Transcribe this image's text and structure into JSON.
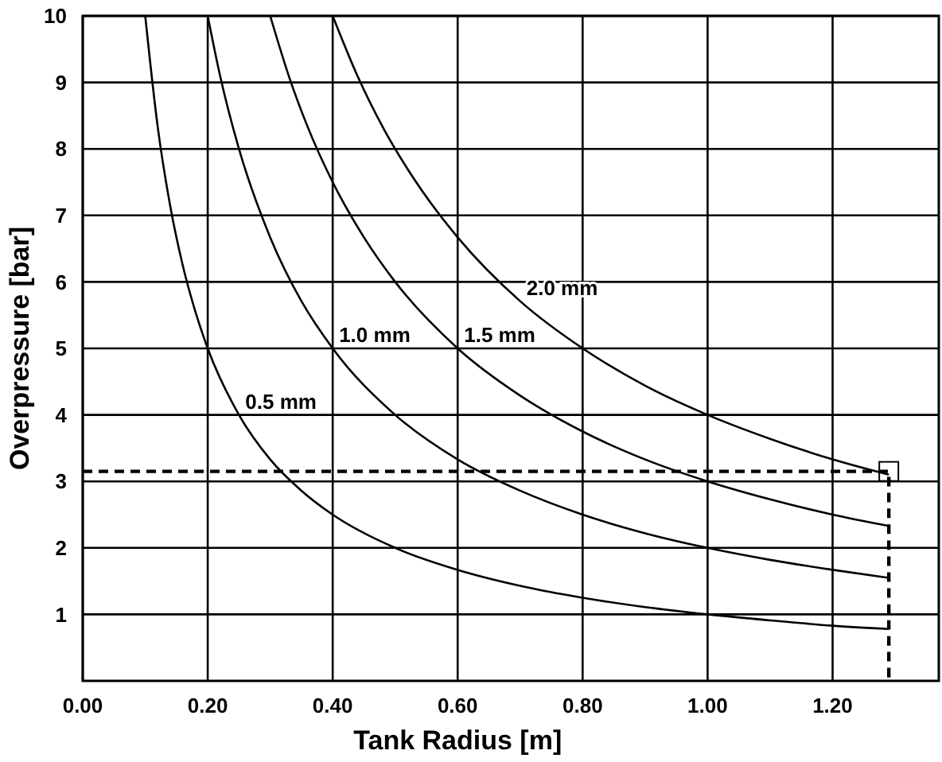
{
  "chart_data": {
    "type": "line",
    "xlabel": "Tank Radius  [m]",
    "ylabel": "Overpressure  [bar]",
    "xlim": [
      0,
      1.37
    ],
    "xticks": [
      {
        "value": 0,
        "label": "0.00"
      },
      {
        "value": 0.2,
        "label": "0.20"
      },
      {
        "value": 0.4,
        "label": "0.40"
      },
      {
        "value": 0.6,
        "label": "0.60"
      },
      {
        "value": 0.8,
        "label": "0.80"
      },
      {
        "value": 1.0,
        "label": "1.00"
      },
      {
        "value": 1.2,
        "label": "1.20"
      }
    ],
    "ylim": [
      0,
      10
    ],
    "yticks": [
      1,
      2,
      3,
      4,
      5,
      6,
      7,
      8,
      9,
      10
    ],
    "grid": true,
    "marker": "none",
    "line_style": "solid",
    "series": [
      {
        "name": "0.5 mm",
        "color": "#000000",
        "x": [
          0.1,
          0.12,
          0.14,
          0.16,
          0.18,
          0.2,
          0.25,
          0.3,
          0.35,
          0.4,
          0.5,
          0.6,
          0.7,
          0.8,
          0.9,
          1.0,
          1.1,
          1.2,
          1.29
        ],
        "values": [
          10,
          8.33,
          7.14,
          6.25,
          5.56,
          5,
          4,
          3.33,
          2.86,
          2.5,
          2,
          1.67,
          1.43,
          1.25,
          1.11,
          1,
          0.91,
          0.83,
          0.78
        ]
      },
      {
        "name": "1.0 mm",
        "color": "#000000",
        "x": [
          0.2,
          0.22,
          0.25,
          0.3,
          0.35,
          0.4,
          0.5,
          0.6,
          0.7,
          0.8,
          0.9,
          1.0,
          1.1,
          1.2,
          1.29
        ],
        "values": [
          10,
          9.09,
          8,
          6.67,
          5.71,
          5,
          4,
          3.33,
          2.86,
          2.5,
          2.22,
          2,
          1.82,
          1.67,
          1.55
        ]
      },
      {
        "name": "1.5 mm",
        "color": "#000000",
        "x": [
          0.3,
          0.33,
          0.36,
          0.4,
          0.45,
          0.5,
          0.6,
          0.7,
          0.8,
          0.9,
          1.0,
          1.1,
          1.2,
          1.29
        ],
        "values": [
          10,
          9.09,
          8.33,
          7.5,
          6.67,
          6,
          5,
          4.29,
          3.75,
          3.33,
          3,
          2.73,
          2.5,
          2.33
        ]
      },
      {
        "name": "2.0 mm",
        "color": "#000000",
        "x": [
          0.4,
          0.44,
          0.48,
          0.53,
          0.6,
          0.7,
          0.8,
          0.9,
          1.0,
          1.1,
          1.2,
          1.29
        ],
        "values": [
          10,
          9.09,
          8.33,
          7.55,
          6.67,
          5.71,
          5,
          4.44,
          4,
          3.64,
          3.33,
          3.1
        ]
      },
      {
        "color": "#000000",
        "line_style": "dashed",
        "x": [
          0,
          1.29,
          1.29
        ],
        "values": [
          3.15,
          3.15,
          0
        ]
      },
      {
        "type": "scatter",
        "marker": "square",
        "color": "#000000",
        "x": [
          1.29
        ],
        "values": [
          3.15
        ]
      }
    ]
  }
}
